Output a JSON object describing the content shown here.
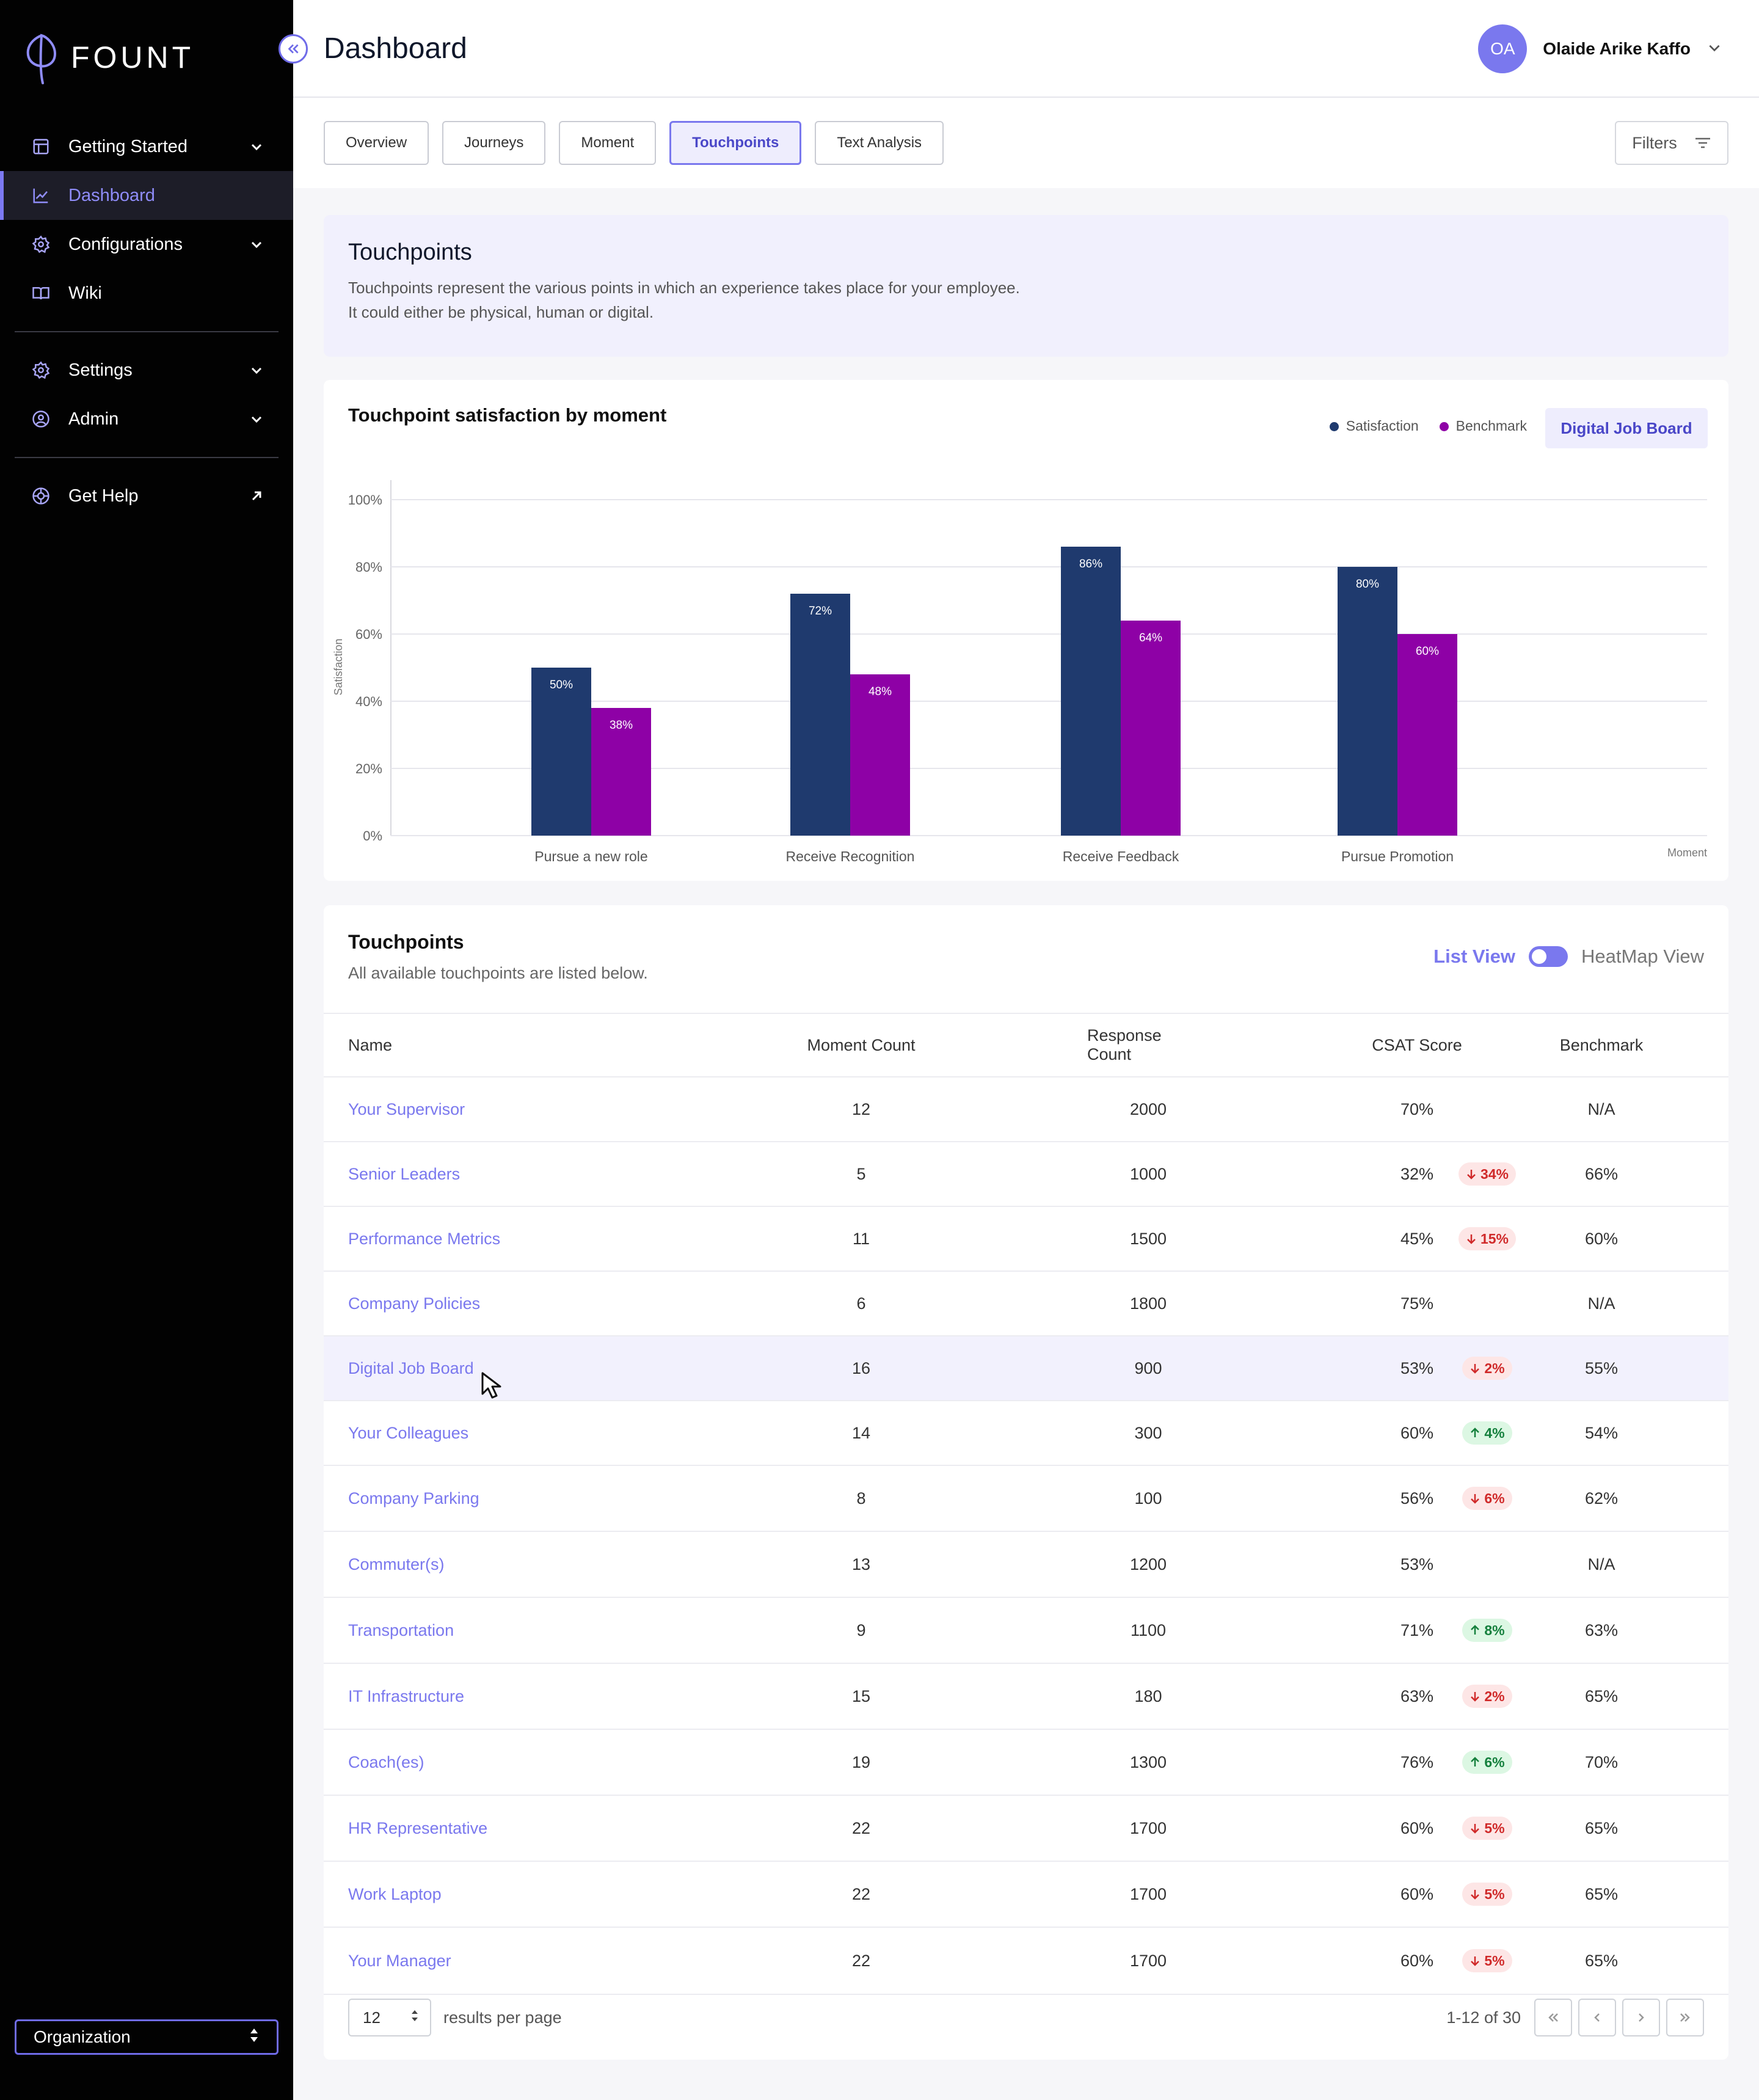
{
  "brand": {
    "name": "FOUNT"
  },
  "sidebar": {
    "items": [
      {
        "label": "Getting Started",
        "icon": "layout-icon",
        "chevron": true
      },
      {
        "label": "Dashboard",
        "icon": "chart-line-icon",
        "chevron": false,
        "active": true
      },
      {
        "label": "Configurations",
        "icon": "gear-icon",
        "chevron": true
      }
    ],
    "wiki": "Wiki",
    "settings": "Settings",
    "admin": "Admin",
    "help": "Get Help",
    "org_select": "Organization"
  },
  "header": {
    "title": "Dashboard",
    "user_initials": "OA",
    "user_name": "Olaide Arike Kaffo"
  },
  "tabs": [
    "Overview",
    "Journeys",
    "Moment",
    "Touchpoints",
    "Text Analysis"
  ],
  "active_tab": "Touchpoints",
  "filters_label": "Filters",
  "intro": {
    "title": "Touchpoints",
    "line1": "Touchpoints represent the various points in which an experience takes place for your employee.",
    "line2": "It could either be physical, human or digital."
  },
  "chart_data": {
    "type": "bar",
    "title": "Touchpoint satisfaction by moment",
    "filter_pill": "Digital Job Board",
    "categories": [
      "Pursue a new role",
      "Receive Recognition",
      "Receive Feedback",
      "Pursue Promotion"
    ],
    "series": [
      {
        "name": "Satisfaction",
        "values": [
          50,
          72,
          86,
          80
        ],
        "color": "#1f3a6e"
      },
      {
        "name": "Benchmark",
        "values": [
          38,
          48,
          64,
          60
        ],
        "color": "#8e01a6"
      }
    ],
    "xlabel": "Moment",
    "ylabel": "Satisfaction",
    "ylim": [
      0,
      100
    ],
    "yticks": [
      "0%",
      "20%",
      "40%",
      "60%",
      "80%",
      "100%"
    ],
    "value_suffix": "%"
  },
  "table": {
    "title": "Touchpoints",
    "subtitle": "All available touchpoints are listed below.",
    "list_view": "List View",
    "heatmap_view": "HeatMap View",
    "headers": [
      "Name",
      "Moment Count",
      "Response Count",
      "CSAT Score",
      "Benchmark"
    ],
    "rows": [
      {
        "name": "Your Supervisor",
        "moment_count": "12",
        "response_count": "2000",
        "csat": "70%",
        "delta": "",
        "dir": "",
        "benchmark": "N/A"
      },
      {
        "name": "Senior Leaders",
        "moment_count": "5",
        "response_count": "1000",
        "csat": "32%",
        "delta": "34%",
        "dir": "down",
        "benchmark": "66%"
      },
      {
        "name": "Performance Metrics",
        "moment_count": "11",
        "response_count": "1500",
        "csat": "45%",
        "delta": "15%",
        "dir": "down",
        "benchmark": "60%"
      },
      {
        "name": "Company Policies",
        "moment_count": "6",
        "response_count": "1800",
        "csat": "75%",
        "delta": "",
        "dir": "",
        "benchmark": "N/A"
      },
      {
        "name": "Digital Job Board",
        "moment_count": "16",
        "response_count": "900",
        "csat": "53%",
        "delta": "2%",
        "dir": "down",
        "benchmark": "55%",
        "highlight": true
      },
      {
        "name": "Your Colleagues",
        "moment_count": "14",
        "response_count": "300",
        "csat": "60%",
        "delta": "4%",
        "dir": "up",
        "benchmark": "54%"
      },
      {
        "name": "Company Parking",
        "moment_count": "8",
        "response_count": "100",
        "csat": "56%",
        "delta": "6%",
        "dir": "down",
        "benchmark": "62%"
      },
      {
        "name": "Commuter(s)",
        "moment_count": "13",
        "response_count": "1200",
        "csat": "53%",
        "delta": "",
        "dir": "",
        "benchmark": "N/A"
      },
      {
        "name": "Transportation",
        "moment_count": "9",
        "response_count": "1100",
        "csat": "71%",
        "delta": "8%",
        "dir": "up",
        "benchmark": "63%"
      },
      {
        "name": "IT Infrastructure",
        "moment_count": "15",
        "response_count": "180",
        "csat": "63%",
        "delta": "2%",
        "dir": "down",
        "benchmark": "65%"
      },
      {
        "name": "Coach(es)",
        "moment_count": "19",
        "response_count": "1300",
        "csat": "76%",
        "delta": "6%",
        "dir": "up",
        "benchmark": "70%"
      },
      {
        "name": "HR Representative",
        "moment_count": "22",
        "response_count": "1700",
        "csat": "60%",
        "delta": "5%",
        "dir": "down",
        "benchmark": "65%"
      },
      {
        "name": "Work Laptop",
        "moment_count": "22",
        "response_count": "1700",
        "csat": "60%",
        "delta": "5%",
        "dir": "down",
        "benchmark": "65%"
      },
      {
        "name": "Your Manager",
        "moment_count": "22",
        "response_count": "1700",
        "csat": "60%",
        "delta": "5%",
        "dir": "down",
        "benchmark": "65%"
      }
    ]
  },
  "pagination": {
    "per_page": "12",
    "per_page_label": "results per page",
    "range": "1-12 of 30"
  },
  "colors": {
    "accent": "#7a78ee",
    "satisfaction": "#1f3a6e",
    "benchmark": "#8e01a6"
  }
}
